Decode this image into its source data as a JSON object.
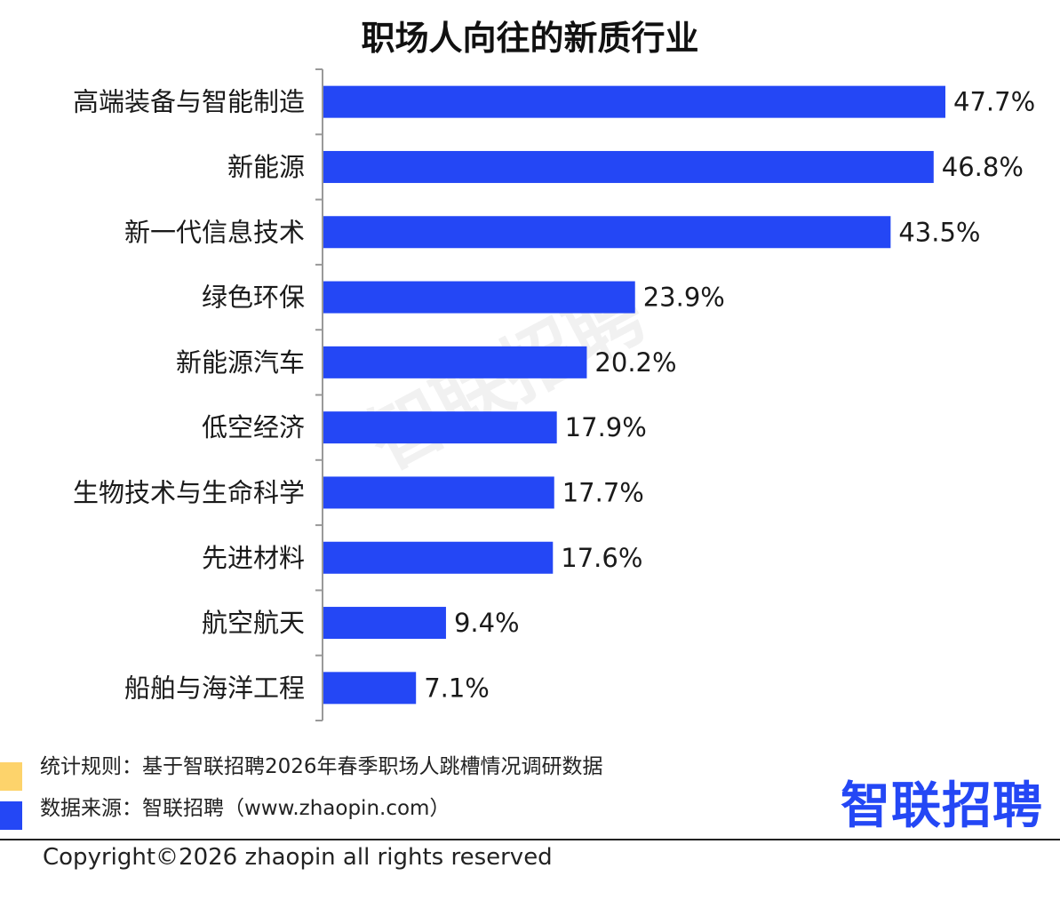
{
  "colors": {
    "bar": "#2447f5",
    "legend_note": "#fdd36b",
    "legend_source": "#2447f5",
    "logo": "#2447f5"
  },
  "watermark": "智联招聘",
  "chart_data": {
    "type": "bar",
    "orientation": "horizontal",
    "title": "职场人向往的新质行业",
    "categories": [
      "高端装备与智能制造",
      "新能源",
      "新一代信息技术",
      "绿色环保",
      "新能源汽车",
      "低空经济",
      "生物技术与生命科学",
      "先进材料",
      "航空航天",
      "船舶与海洋工程"
    ],
    "values": [
      47.7,
      46.8,
      43.5,
      23.9,
      20.2,
      17.9,
      17.7,
      17.6,
      9.4,
      7.1
    ],
    "value_labels": [
      "47.7%",
      "46.8%",
      "43.5%",
      "23.9%",
      "20.2%",
      "17.9%",
      "17.7%",
      "17.6%",
      "9.4%",
      "7.1%"
    ],
    "unit": "%",
    "xlim": [
      0,
      50
    ],
    "grid": false,
    "legend": "none"
  },
  "legend": {
    "note": "统计规则：基于智联招聘2026年春季职场人跳槽情况调研数据",
    "source": "数据来源：智联招聘（www.zhaopin.com）"
  },
  "logo_text": "智联招聘",
  "footer": {
    "copyright": "Copyright©2026 zhaopin all rights reserved"
  }
}
